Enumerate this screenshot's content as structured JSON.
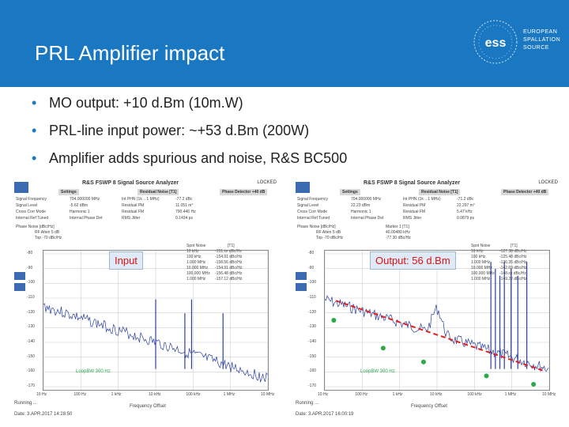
{
  "slide": {
    "title": "PRL Amplifier impact",
    "logo": {
      "line1": "EUROPEAN",
      "line2": "SPALLATION",
      "line3": "SOURCE",
      "mark": "ess"
    },
    "bullets": [
      "MO output: +10 d.Bm (10m.W)",
      "PRL-line input power: ~+53 d.Bm (200W)",
      "Amplifier adds spurious and noise, R&S BC500"
    ]
  },
  "left_panel": {
    "window_title": "R&S FSWP 8 Signal Source Analyzer",
    "locked": "LOCKED",
    "headers": [
      "Settings",
      "Residual Noise [T1]",
      "Phase Detector +40 dB"
    ],
    "rows": [
      [
        "Signal Frequency",
        "704.000000 MHz",
        "Int PHN (1k .. 1 MHz)",
        "-77.2 dBc"
      ],
      [
        "Signal Level",
        "-5.62 dBm",
        "Residual PM",
        "11.051 m°"
      ],
      [
        "Cross Corr Mode",
        "Harmonic 1",
        "Residual FM",
        "790.446 Hz"
      ],
      [
        "Internal Ref Tuned",
        "Internal Phase Det",
        "RMS Jitter",
        "0.1434 ps"
      ]
    ],
    "trace_header": [
      "Phase Noise [dBc/Hz]",
      "RF Atten   5 dB",
      "Top  -70 dBc/Hz"
    ],
    "marker_box": {
      "header": [
        "Spot Noise",
        "[T1]"
      ],
      "lines": [
        "10 kHz",
        "100 kHz",
        "1.000 MHz",
        "10.000 MHz",
        "100.000 MHz",
        "1.000 MHz"
      ],
      "values": [
        "-151.xx dBc/Hz",
        "-154.91 dBc/Hz",
        "-158.56 dBc/Hz",
        "-154.91 dBc/Hz",
        "-156.48 dBc/Hz",
        "-157.12 dBc/Hz"
      ]
    },
    "tag": "Input",
    "y_labels": [
      "-80",
      "-90",
      "-100",
      "-110",
      "-120",
      "-130",
      "-140",
      "-150",
      "-160",
      "-170"
    ],
    "x_labels": [
      "10 Hz",
      "100 Hz",
      "1 kHz",
      "10 kHz",
      "100 kHz",
      "1 MHz",
      "10 MHz"
    ],
    "x_axis_title": "Frequency Offset",
    "loop_bw": "LoopBW 300 Hz",
    "status": "Running ...",
    "date": "Date: 3.APR.2017  14:28:50"
  },
  "right_panel": {
    "window_title": "R&S FSWP 8 Signal Source Analyzer",
    "locked": "LOCKED",
    "headers": [
      "Settings",
      "Residual Noise [T1]",
      "Phase Detector +40 dB"
    ],
    "rows": [
      [
        "Signal Frequency",
        "704.000000 MHz",
        "Int PHN (1k .. 1 MHz)",
        "-71.2 dBc"
      ],
      [
        "Signal Level",
        "22.23 dBm",
        "Residual PM",
        "22.297 m°"
      ],
      [
        "Cross Corr Mode",
        "Harmonic 1",
        "Residual FM",
        "5.47 kHz"
      ],
      [
        "Internal Ref Tuned",
        "Internal Phase Det",
        "RMS Jitter",
        "0.0879 ps"
      ]
    ],
    "trace_header": [
      "Phase Noise [dBc/Hz]",
      "RF Atten   5 dB",
      "Top  -70 dBc/Hz"
    ],
    "marker_box": {
      "header": [
        "Spot Noise",
        "[T1]"
      ],
      "lines": [
        "10 kHz",
        "100 kHz",
        "1.000 MHz",
        "10.000 MHz",
        "100.000 MHz",
        "1.000 MHz"
      ],
      "values": [
        "-127.38 dBc/Hz",
        "-125.48 dBc/Hz",
        "-136.35 dBc/Hz",
        "-142.69 dBc/Hz",
        "-148.xx dBc/Hz",
        "-149.22 dBc/Hz"
      ]
    },
    "marker1": "Marker 1 [T1]",
    "marker1_val1": "40.00480 kHz",
    "marker1_val2": "-77.30 dBc/Hz",
    "tag": "Output: 56 d.Bm",
    "y_labels": [
      "-80",
      "-90",
      "-100",
      "-110",
      "-120",
      "-130",
      "-140",
      "-150",
      "-160",
      "-170"
    ],
    "x_labels": [
      "10 Hz",
      "100 Hz",
      "1 kHz",
      "10 kHz",
      "100 kHz",
      "1 MHz",
      "10 MHz"
    ],
    "x_axis_title": "Frequency Offset",
    "loop_bw": "LoopBW 300 Hz",
    "status": "Running ...",
    "date": "Date: 3.APR.2017  16:00:19"
  },
  "colors": {
    "header_blue": "#1a78c2",
    "trace": "#2a3fa0",
    "annotation_red": "#e02020",
    "marker_green": "#2aa84a",
    "tag_text": "#d11111"
  }
}
